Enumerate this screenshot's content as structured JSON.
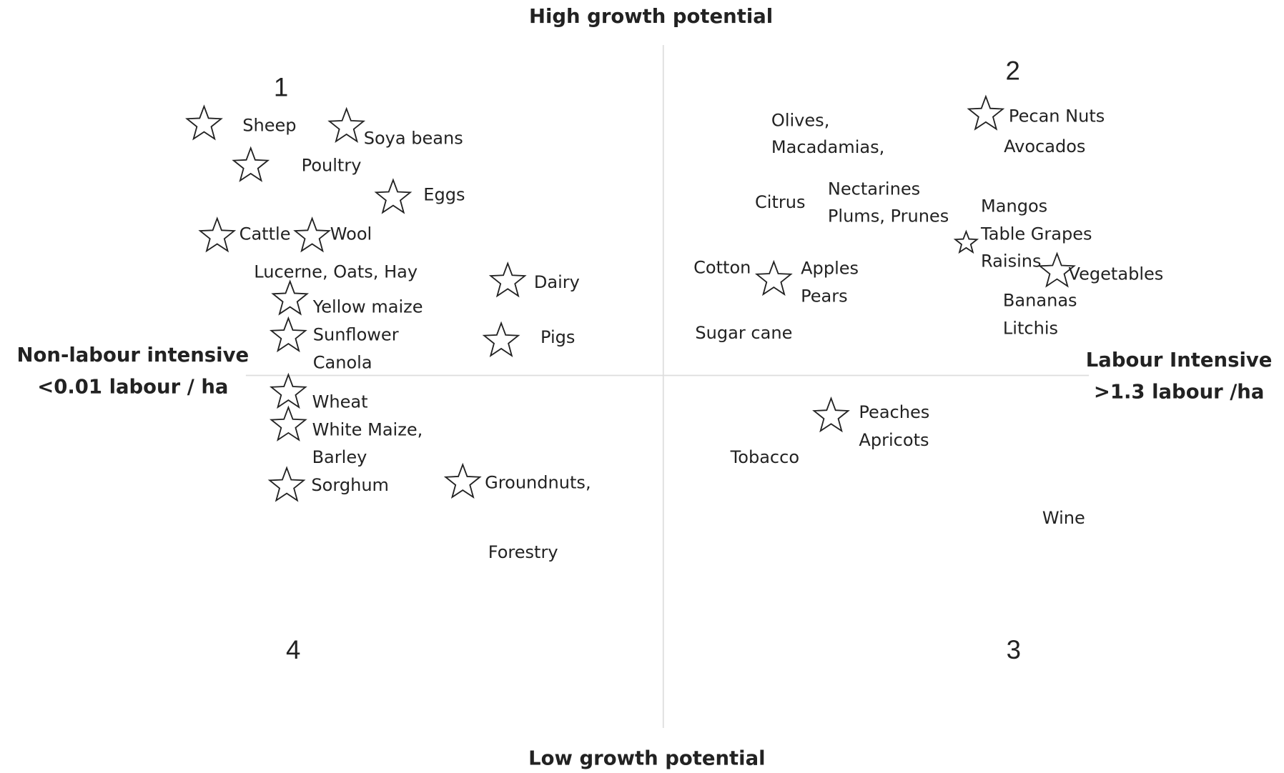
{
  "header": {
    "top": "High growth potential",
    "bottom": "Low growth potential",
    "left": [
      "Non-labour intensive",
      "<0.01 labour / ha"
    ],
    "right": [
      "Labour Intensive",
      ">1.3 labour /ha"
    ]
  },
  "quadrants": [
    "1",
    "2",
    "3",
    "4"
  ],
  "labels": [
    "Sheep",
    "Soya beans",
    "Poultry",
    "Eggs",
    "Cattle",
    "Wool",
    "Lucerne, Oats, Hay",
    "Dairy",
    "Yellow maize",
    "Sunflower",
    "Pigs",
    "Canola",
    "Wheat",
    "White Maize,",
    "Barley",
    "Sorghum",
    "Groundnuts,",
    "Forestry",
    "Olives,",
    "Macadamias,",
    "Pecan Nuts",
    "Avocados",
    "Citrus",
    "Nectarines",
    "Plums, Prunes",
    "Mangos",
    "Table Grapes",
    "Raisins",
    "Vegetables",
    "Cotton",
    "Apples",
    "Pears",
    "Bananas",
    "Litchis",
    "Sugar cane",
    "Peaches",
    "Apricots",
    "Tobacco",
    "Wine"
  ]
}
